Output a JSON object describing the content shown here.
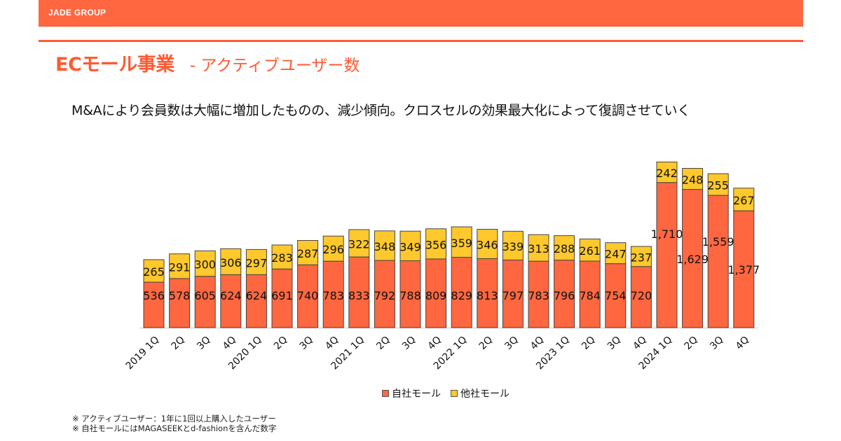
{
  "header": {
    "brand": "JADE GROUP",
    "title_main": "ECモール事業",
    "title_sub": "- アクティブユーザー数",
    "subtitle": "M&Aにより会員数は大幅に増加したものの、減少傾向。クロスセルの効果最大化によって復調させていく"
  },
  "colors": {
    "brand": "#ff6740",
    "own_mall": "#ff6740",
    "other_mall": "#ffc82c"
  },
  "chart_data": {
    "type": "bar",
    "stacked": true,
    "title": "",
    "xlabel": "",
    "ylabel": "",
    "ylim": [
      0,
      2000
    ],
    "grid": false,
    "legend_position": "bottom",
    "categories": [
      "2019 1Q",
      "2Q",
      "3Q",
      "4Q",
      "2020 1Q",
      "2Q",
      "3Q",
      "4Q",
      "2021 1Q",
      "2Q",
      "3Q",
      "4Q",
      "2022 1Q",
      "2Q",
      "3Q",
      "4Q",
      "2023 1Q",
      "2Q",
      "3Q",
      "4Q",
      "2024 1Q",
      "2Q",
      "3Q",
      "4Q"
    ],
    "series": [
      {
        "name": "自社モール",
        "color": "#ff6740",
        "values": [
          536,
          578,
          605,
          624,
          624,
          691,
          740,
          783,
          833,
          792,
          788,
          809,
          829,
          813,
          797,
          783,
          796,
          784,
          754,
          720,
          1710,
          1629,
          1559,
          1377
        ],
        "labels": [
          "536",
          "578",
          "605",
          "624",
          "624",
          "691",
          "740",
          "783",
          "833",
          "792",
          "788",
          "809",
          "829",
          "813",
          "797",
          "783",
          "796",
          "784",
          "754",
          "720",
          "1,710",
          "1,629",
          "1,559",
          "1,377"
        ]
      },
      {
        "name": "他社モール",
        "color": "#ffc82c",
        "values": [
          265,
          291,
          300,
          306,
          297,
          283,
          287,
          296,
          322,
          348,
          349,
          356,
          359,
          346,
          339,
          313,
          288,
          261,
          247,
          237,
          242,
          248,
          255,
          267
        ],
        "labels": [
          "265",
          "291",
          "300",
          "306",
          "297",
          "283",
          "287",
          "296",
          "322",
          "348",
          "349",
          "356",
          "359",
          "346",
          "339",
          "313",
          "288",
          "261",
          "247",
          "237",
          "242",
          "248",
          "255",
          "267"
        ]
      }
    ]
  },
  "legend": {
    "items": [
      "自社モール",
      "他社モール"
    ]
  },
  "notes": [
    "※ アクティブユーザー：1年に1回以上購入したユーザー",
    "※ 自社モールにはMAGASEEKとd-fashionを含んだ数字"
  ]
}
